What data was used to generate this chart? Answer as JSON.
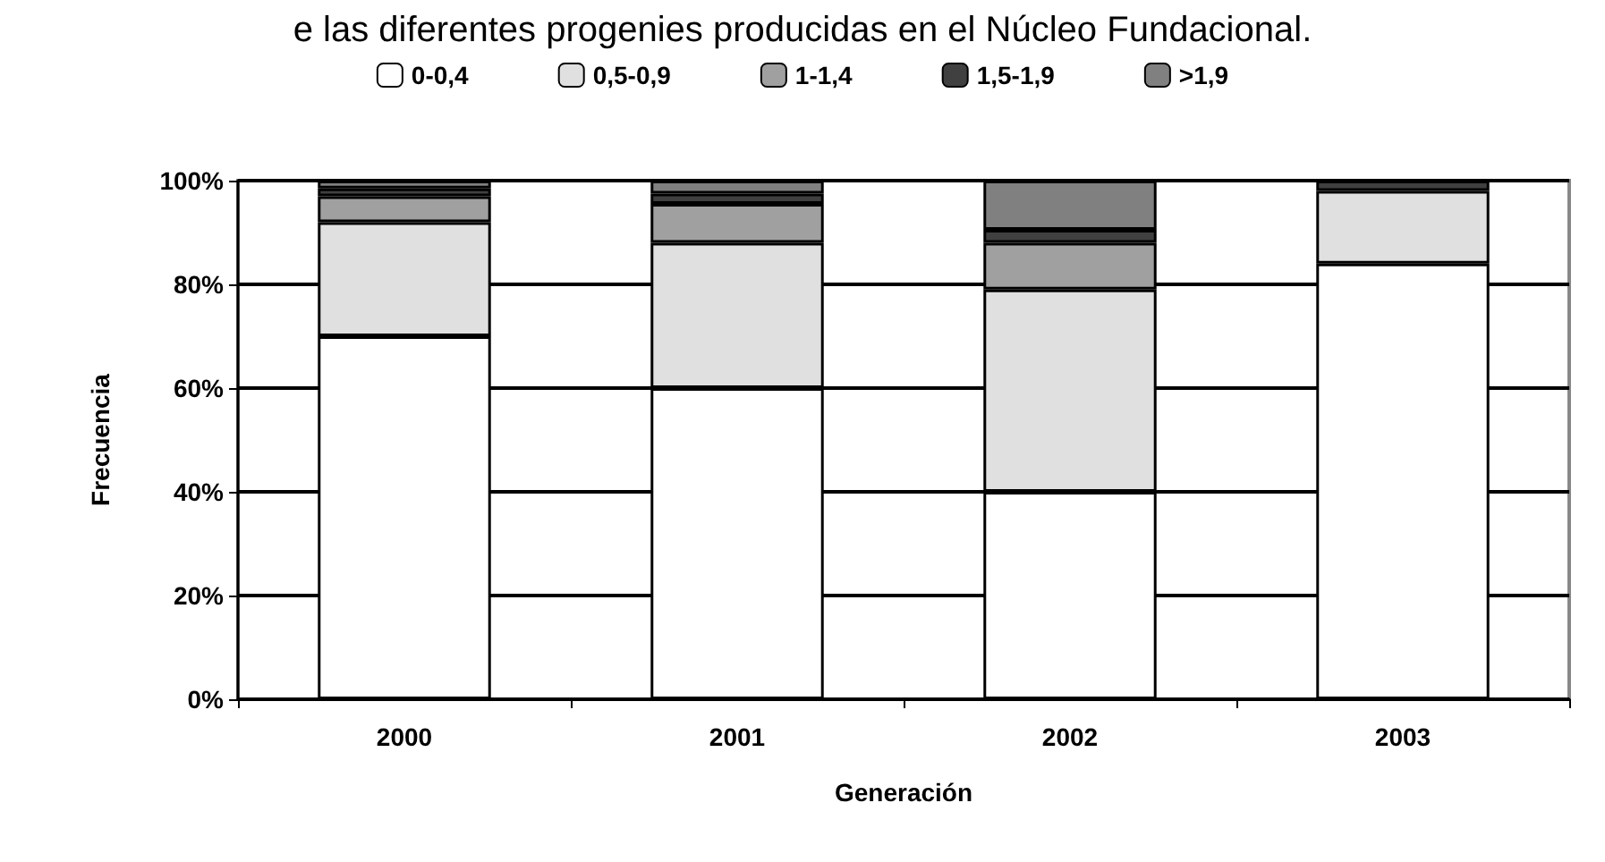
{
  "chart_data": {
    "type": "bar",
    "stacked": true,
    "title": "e las diferentes progenies producidas en el Núcleo Fundacional.",
    "xlabel": "Generación",
    "ylabel": "Frecuencia",
    "categories": [
      "2000",
      "2001",
      "2002",
      "2003"
    ],
    "series": [
      {
        "name": "0-0,4",
        "color": "#ffffff",
        "values": [
          70,
          60,
          40,
          84
        ]
      },
      {
        "name": "0,5-0,9",
        "color": "#e0e0e0",
        "values": [
          22,
          28,
          39,
          14
        ]
      },
      {
        "name": "1-1,4",
        "color": "#a0a0a0",
        "values": [
          5,
          7.5,
          9,
          0
        ]
      },
      {
        "name": "1,5-1,9",
        "color": "#404040",
        "values": [
          1.5,
          2,
          2.5,
          2
        ]
      },
      {
        "name": ">1,9",
        "color": "#808080",
        "values": [
          1.5,
          2.5,
          9.5,
          0
        ]
      }
    ],
    "ylim": [
      0,
      100
    ],
    "yticks": [
      {
        "value": 0,
        "label": "0%"
      },
      {
        "value": 20,
        "label": "20%"
      },
      {
        "value": 40,
        "label": "40%"
      },
      {
        "value": 60,
        "label": "60%"
      },
      {
        "value": 80,
        "label": "80%"
      },
      {
        "value": 100,
        "label": "100%"
      }
    ],
    "grid": "y",
    "legend": "top"
  }
}
